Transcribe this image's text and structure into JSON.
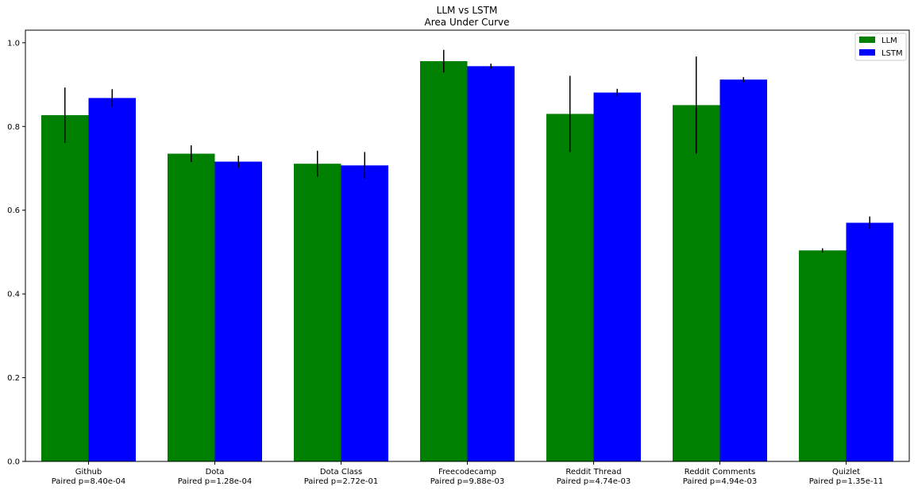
{
  "chart_data": {
    "type": "bar",
    "title": "LLM vs LSTM",
    "subtitle": "Area Under Curve",
    "categories": [
      {
        "name": "Github",
        "note": "Paired p=8.40e-04"
      },
      {
        "name": "Dota",
        "note": "Paired p=1.28e-04"
      },
      {
        "name": "Dota Class",
        "note": "Paired p=2.72e-01"
      },
      {
        "name": "Freecodecamp",
        "note": "Paired p=9.88e-03"
      },
      {
        "name": "Reddit Thread",
        "note": "Paired p=4.74e-03"
      },
      {
        "name": "Reddit Comments",
        "note": "Paired p=4.94e-03"
      },
      {
        "name": "Quizlet",
        "note": "Paired p=1.35e-11"
      }
    ],
    "series": [
      {
        "name": "LLM",
        "color": "#008000",
        "values": [
          0.827,
          0.735,
          0.711,
          0.956,
          0.83,
          0.851,
          0.504
        ],
        "errors": [
          0.066,
          0.02,
          0.031,
          0.027,
          0.091,
          0.116,
          0.005
        ]
      },
      {
        "name": "LSTM",
        "color": "#0000ff",
        "values": [
          0.868,
          0.716,
          0.707,
          0.944,
          0.881,
          0.912,
          0.57
        ],
        "errors": [
          0.021,
          0.014,
          0.032,
          0.006,
          0.009,
          0.006,
          0.015
        ]
      }
    ],
    "xlabel": "",
    "ylabel": "",
    "ylim": [
      0,
      1.03
    ],
    "yticks": [
      "0.0",
      "0.2",
      "0.4",
      "0.6",
      "0.8",
      "1.0"
    ],
    "grid": false,
    "legend_position": "top-right"
  }
}
